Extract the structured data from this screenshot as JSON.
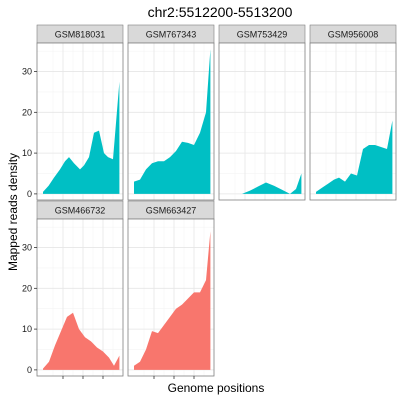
{
  "chart_data": {
    "type": "area",
    "title": "chr2:5512200-5513200",
    "xlabel": "Genome positions",
    "ylabel": "Mapped reads density",
    "ylim": [
      -1.5,
      37
    ],
    "y_ticks": [
      0,
      10,
      20,
      30
    ],
    "x_ticks": [
      1,
      2,
      3
    ],
    "show_x_tick_labels": false,
    "grid": true,
    "facet_columns": 4,
    "colors": {
      "group_1": "#00BFC4",
      "group_2": "#F8766D"
    },
    "panels": [
      {
        "label": "GSM818031",
        "group": "group_1",
        "x": [
          0.0,
          0.28,
          0.55,
          0.85,
          1.1,
          1.3,
          1.55,
          1.85,
          2.05,
          2.3,
          2.55,
          2.8,
          3.05,
          3.25,
          3.5,
          3.82
        ],
        "y": [
          0.5,
          2.0,
          4.0,
          6.0,
          8.0,
          9.0,
          7.5,
          6.0,
          7.0,
          9.0,
          15.0,
          15.5,
          10.0,
          9.0,
          8.5,
          27.5
        ]
      },
      {
        "label": "GSM767343",
        "group": "group_1",
        "x": [
          0.0,
          0.3,
          0.6,
          0.9,
          1.2,
          1.5,
          1.8,
          2.1,
          2.4,
          2.7,
          3.0,
          3.3,
          3.6,
          3.82
        ],
        "y": [
          3.0,
          3.5,
          6.0,
          7.5,
          8.0,
          8.0,
          9.0,
          10.5,
          12.8,
          12.5,
          12.0,
          15.0,
          20.0,
          35.5
        ]
      },
      {
        "label": "GSM753429",
        "group": "group_1",
        "x": [
          0.85,
          1.25,
          1.65,
          2.05,
          2.45,
          2.85,
          3.25,
          3.55,
          3.82
        ],
        "y": [
          0.0,
          0.8,
          1.8,
          2.8,
          2.0,
          1.0,
          0.0,
          1.2,
          5.0
        ]
      },
      {
        "label": "GSM956008",
        "group": "group_1",
        "x": [
          0.0,
          0.3,
          0.6,
          0.9,
          1.15,
          1.45,
          1.75,
          2.05,
          2.35,
          2.65,
          2.95,
          3.25,
          3.55,
          3.82
        ],
        "y": [
          0.5,
          1.5,
          2.5,
          3.5,
          4.0,
          3.0,
          5.0,
          4.5,
          11.0,
          12.0,
          12.0,
          11.5,
          11.0,
          18.0
        ]
      },
      {
        "label": "GSM466732",
        "group": "group_2",
        "x": [
          0.0,
          0.3,
          0.6,
          0.9,
          1.2,
          1.5,
          1.8,
          2.1,
          2.4,
          2.7,
          3.0,
          3.3,
          3.55,
          3.82
        ],
        "y": [
          0.3,
          2.0,
          6.0,
          9.5,
          13.0,
          14.0,
          10.0,
          8.0,
          7.0,
          5.5,
          4.5,
          3.0,
          1.0,
          3.5
        ]
      },
      {
        "label": "GSM663427",
        "group": "group_2",
        "x": [
          0.0,
          0.3,
          0.6,
          0.9,
          1.2,
          1.5,
          1.8,
          2.1,
          2.4,
          2.7,
          3.0,
          3.3,
          3.6,
          3.82
        ],
        "y": [
          1.0,
          2.0,
          5.0,
          9.5,
          9.0,
          11.0,
          13.0,
          15.0,
          16.0,
          17.5,
          19.0,
          19.0,
          22.0,
          34.0
        ]
      }
    ]
  }
}
